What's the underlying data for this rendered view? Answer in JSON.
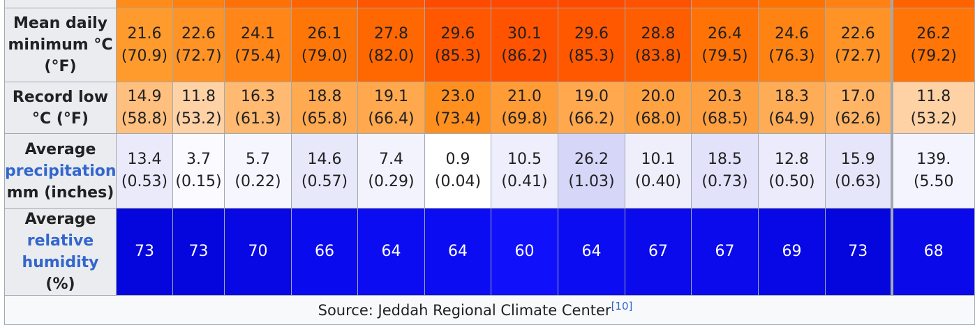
{
  "rows": [
    {
      "label_parts": [
        {
          "text": "",
          "link": false
        }
      ],
      "top_row": true,
      "cells": [
        {
          "v": "",
          "s": "",
          "bg": "#ff8c1a"
        },
        {
          "v": "",
          "s": "",
          "bg": "#ff7f0f"
        },
        {
          "v": "",
          "s": "",
          "bg": "#ff7007"
        },
        {
          "v": "",
          "s": "",
          "bg": "#ff6300"
        },
        {
          "v": "",
          "s": "",
          "bg": "#ff5600"
        },
        {
          "v": "",
          "s": "",
          "bg": "#ff4b00"
        },
        {
          "v": "",
          "s": "",
          "bg": "#ff4800"
        },
        {
          "v": "",
          "s": "",
          "bg": "#ff4b00"
        },
        {
          "v": "",
          "s": "",
          "bg": "#ff5200"
        },
        {
          "v": "",
          "s": "",
          "bg": "#ff6300"
        },
        {
          "v": "",
          "s": "",
          "bg": "#ff7200"
        },
        {
          "v": "",
          "s": "",
          "bg": "#ff8013"
        },
        {
          "v": "",
          "s": "",
          "bg": "#ff6300"
        }
      ]
    },
    {
      "label_lines": [
        "Mean daily",
        "minimum °C",
        "(°F)"
      ],
      "cells": [
        {
          "v": "21.6",
          "s": "(70.9)",
          "bg": "#ff9b2d"
        },
        {
          "v": "22.6",
          "s": "(72.7)",
          "bg": "#ff9325"
        },
        {
          "v": "24.1",
          "s": "(75.4)",
          "bg": "#ff8617"
        },
        {
          "v": "26.1",
          "s": "(79.0)",
          "bg": "#ff7608"
        },
        {
          "v": "27.8",
          "s": "(82.0)",
          "bg": "#ff6700"
        },
        {
          "v": "29.6",
          "s": "(85.3)",
          "bg": "#ff5800"
        },
        {
          "v": "30.1",
          "s": "(86.2)",
          "bg": "#ff5300"
        },
        {
          "v": "29.6",
          "s": "(85.3)",
          "bg": "#ff5800"
        },
        {
          "v": "28.8",
          "s": "(83.8)",
          "bg": "#ff5e00"
        },
        {
          "v": "26.4",
          "s": "(79.5)",
          "bg": "#ff7306"
        },
        {
          "v": "24.6",
          "s": "(76.3)",
          "bg": "#ff8313"
        },
        {
          "v": "22.6",
          "s": "(72.7)",
          "bg": "#ff9325"
        },
        {
          "v": "26.2",
          "s": "(79.2)",
          "bg": "#ff7507"
        }
      ]
    },
    {
      "label_lines": [
        "Record low",
        "°C (°F)"
      ],
      "cells": [
        {
          "v": "14.9",
          "s": "(58.8)",
          "bg": "#ffc07f"
        },
        {
          "v": "11.8",
          "s": "(53.2)",
          "bg": "#ffd2a6"
        },
        {
          "v": "16.3",
          "s": "(61.3)",
          "bg": "#ffb970"
        },
        {
          "v": "18.8",
          "s": "(65.8)",
          "bg": "#ffa950"
        },
        {
          "v": "19.1",
          "s": "(66.4)",
          "bg": "#ffa84d"
        },
        {
          "v": "23.0",
          "s": "(73.4)",
          "bg": "#ff901f"
        },
        {
          "v": "21.0",
          "s": "(69.8)",
          "bg": "#ff9c35"
        },
        {
          "v": "19.0",
          "s": "(66.2)",
          "bg": "#ffa84e"
        },
        {
          "v": "20.0",
          "s": "(68.0)",
          "bg": "#ffa242"
        },
        {
          "v": "20.3",
          "s": "(68.5)",
          "bg": "#ffa040"
        },
        {
          "v": "18.3",
          "s": "(64.9)",
          "bg": "#ffac57"
        },
        {
          "v": "17.0",
          "s": "(62.6)",
          "bg": "#ffb466"
        },
        {
          "v": "11.8",
          "s": "(53.2)",
          "bg": "#ffd2a6"
        }
      ]
    },
    {
      "label_parts": [
        {
          "text": "Average",
          "link": false,
          "br": true
        },
        {
          "text": "precipitation",
          "link": true,
          "br": true
        },
        {
          "text": "mm (inches)",
          "link": false
        }
      ],
      "cells": [
        {
          "v": "13.4",
          "s": "(0.53)",
          "bg": "#eaeafb"
        },
        {
          "v": "3.7",
          "s": "(0.15)",
          "bg": "#fafaff"
        },
        {
          "v": "5.7",
          "s": "(0.22)",
          "bg": "#f6f6fe"
        },
        {
          "v": "14.6",
          "s": "(0.57)",
          "bg": "#e8e8fb"
        },
        {
          "v": "7.4",
          "s": "(0.29)",
          "bg": "#f3f3fd"
        },
        {
          "v": "0.9",
          "s": "(0.04)",
          "bg": "#ffffff"
        },
        {
          "v": "10.5",
          "s": "(0.41)",
          "bg": "#eeeefc"
        },
        {
          "v": "26.2",
          "s": "(1.03)",
          "bg": "#d6d6f8"
        },
        {
          "v": "10.1",
          "s": "(0.40)",
          "bg": "#efeffc"
        },
        {
          "v": "18.5",
          "s": "(0.73)",
          "bg": "#e2e2fa"
        },
        {
          "v": "12.8",
          "s": "(0.50)",
          "bg": "#ebebfb"
        },
        {
          "v": "15.9",
          "s": "(0.63)",
          "bg": "#e6e6fb"
        },
        {
          "v": "139.",
          "s": "(5.50",
          "bg": "#f4f4fe"
        }
      ]
    },
    {
      "label_parts": [
        {
          "text": "Average",
          "link": false,
          "br": true
        },
        {
          "text": "relative",
          "link": true,
          "br": true
        },
        {
          "text": "humidity",
          "link": true
        },
        {
          "text": " (%)",
          "link": false
        }
      ],
      "humidity": true,
      "cells": [
        {
          "v": "73",
          "bg": "#0505dd"
        },
        {
          "v": "73",
          "bg": "#0505dd"
        },
        {
          "v": "70",
          "bg": "#0808e5"
        },
        {
          "v": "66",
          "bg": "#0a0aee"
        },
        {
          "v": "64",
          "bg": "#0c0cf2"
        },
        {
          "v": "64",
          "bg": "#0c0cf2"
        },
        {
          "v": "60",
          "bg": "#1010fb"
        },
        {
          "v": "64",
          "bg": "#0c0cf2"
        },
        {
          "v": "67",
          "bg": "#0a0aec"
        },
        {
          "v": "67",
          "bg": "#0a0aec"
        },
        {
          "v": "69",
          "bg": "#0808e7"
        },
        {
          "v": "73",
          "bg": "#0505dd"
        },
        {
          "v": "68",
          "bg": "#0909ea"
        }
      ]
    }
  ],
  "source": {
    "text": "Source: Jeddah Regional Climate Center",
    "ref": "[10]"
  }
}
